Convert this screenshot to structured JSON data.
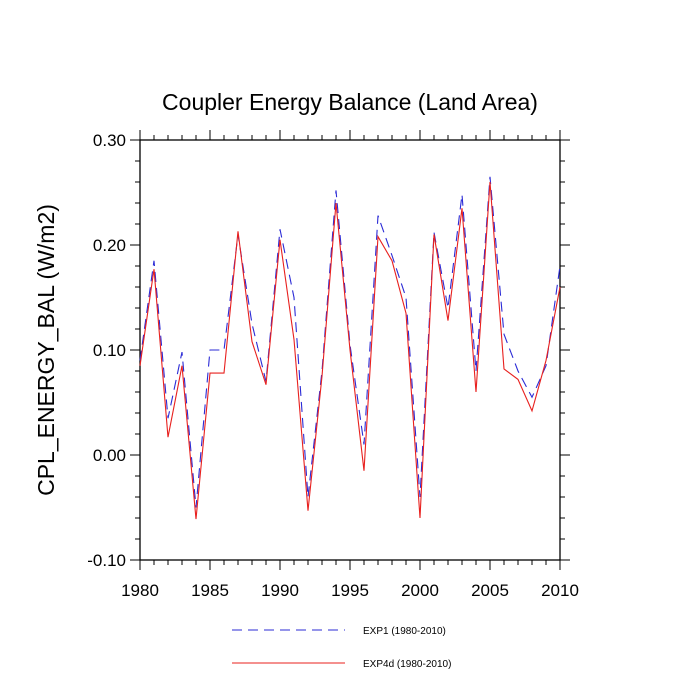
{
  "chart_data": {
    "type": "line",
    "title": "Coupler Energy Balance (Land Area)",
    "xlabel": "",
    "ylabel": "CPL_ENERGY_BAL  (W/m2)",
    "xlim": [
      1980,
      2010
    ],
    "ylim": [
      -0.1,
      0.3
    ],
    "x_ticks": [
      "1980",
      "1985",
      "1990",
      "1995",
      "2000",
      "2005",
      "2010"
    ],
    "y_ticks": [
      "-0.10",
      "0.00",
      "0.10",
      "0.20",
      "0.30"
    ],
    "x": [
      1980,
      1981,
      1982,
      1983,
      1984,
      1985,
      1986,
      1987,
      1988,
      1989,
      1990,
      1991,
      1992,
      1993,
      1994,
      1995,
      1996,
      1997,
      1998,
      1999,
      2000,
      2001,
      2002,
      2003,
      2004,
      2005,
      2006,
      2007,
      2008,
      2009,
      2010
    ],
    "series": [
      {
        "name": "EXP1 (1980-2010)",
        "color": "#2b2bd6",
        "style": "dashed",
        "values": [
          0.09,
          0.185,
          0.035,
          0.098,
          -0.05,
          0.1,
          0.1,
          0.21,
          0.125,
          0.07,
          0.215,
          0.15,
          -0.04,
          0.08,
          0.252,
          0.105,
          0.01,
          0.228,
          0.19,
          0.15,
          -0.04,
          0.212,
          0.14,
          0.248,
          0.08,
          0.265,
          0.115,
          0.08,
          0.055,
          0.085,
          0.18
        ]
      },
      {
        "name": "EXP4d (1980-2010)",
        "color": "#e8201e",
        "style": "solid",
        "values": [
          0.085,
          0.177,
          0.017,
          0.085,
          -0.061,
          0.078,
          0.078,
          0.213,
          0.108,
          0.067,
          0.205,
          0.11,
          -0.053,
          0.075,
          0.24,
          0.1,
          -0.015,
          0.208,
          0.185,
          0.135,
          -0.06,
          0.21,
          0.128,
          0.235,
          0.06,
          0.26,
          0.082,
          0.072,
          0.042,
          0.09,
          0.16
        ]
      }
    ]
  }
}
